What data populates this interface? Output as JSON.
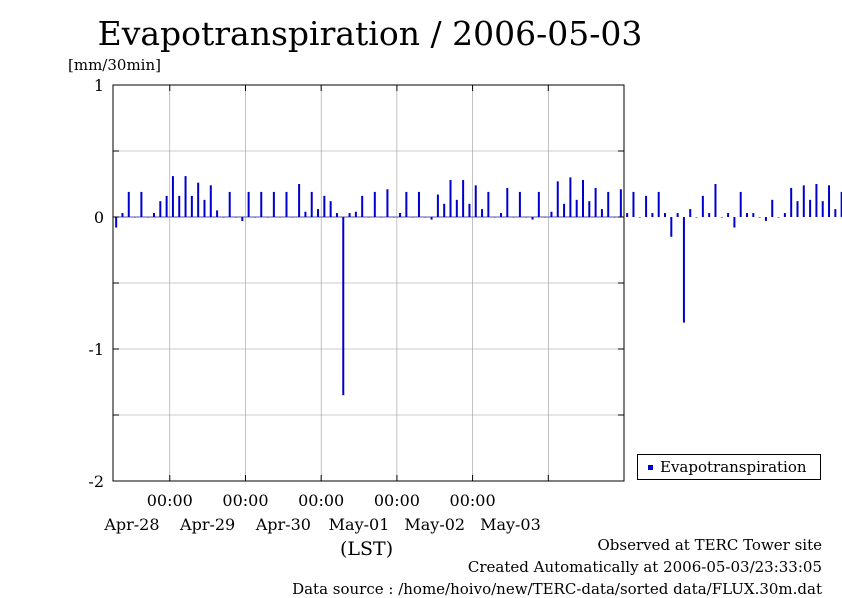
{
  "page": {
    "title": "Evapotranspiration / 2006-05-03",
    "unit_label": "[mm/30min]",
    "x_axis_title": "(LST)",
    "footer": {
      "line1": "Observed at TERC Tower site",
      "line2": "Created Automatically at 2006-05-03/23:33:05",
      "line3": "Data source : /home/hoivo/new/TERC-data/sorted  data/FLUX.30m.dat"
    }
  },
  "chart_data": {
    "type": "bar",
    "title": "Evapotranspiration / 2006-05-03",
    "ylabel": "[mm/30min]",
    "xlabel": "(LST)",
    "ylim": [
      -2,
      1
    ],
    "yticks": [
      1,
      0,
      -1,
      -2
    ],
    "xlim": [
      "2006-04-27 06:00",
      "2006-05-04 00:00"
    ],
    "xtick_times": [
      "00:00",
      "00:00",
      "00:00",
      "00:00",
      "00:00"
    ],
    "xtick_dates": [
      "Apr-28",
      "Apr-29",
      "Apr-30",
      "May-01",
      "May-02",
      "May-03"
    ],
    "legend": {
      "position": "right",
      "entries": [
        "Evapotranspiration"
      ]
    },
    "colors": {
      "series": "#0000cc",
      "grid": "#999999"
    },
    "grid": true,
    "series": [
      {
        "name": "Evapotranspiration",
        "hour_step": 2,
        "values": [
          -0.08,
          0.03,
          0.19,
          0.0,
          0.19,
          0.0,
          0.03,
          0.12,
          0.16,
          0.31,
          0.16,
          0.31,
          0.16,
          0.26,
          0.13,
          0.24,
          0.05,
          0.0,
          0.19,
          0.0,
          -0.03,
          0.19,
          0.0,
          0.19,
          0.0,
          0.19,
          0.0,
          0.19,
          0.0,
          0.25,
          0.04,
          0.19,
          0.06,
          0.16,
          0.12,
          0.03,
          -1.35,
          0.03,
          0.04,
          0.16,
          0.0,
          0.19,
          0.0,
          0.21,
          0.0,
          0.03,
          0.19,
          0.0,
          0.19,
          0.0,
          -0.02,
          0.17,
          0.1,
          0.28,
          0.13,
          0.28,
          0.1,
          0.24,
          0.06,
          0.19,
          0.0,
          0.03,
          0.22,
          0.0,
          0.19,
          0.0,
          -0.02,
          0.19,
          0.0,
          0.04,
          0.27,
          0.1,
          0.3,
          0.13,
          0.28,
          0.12,
          0.22,
          0.06,
          0.19,
          0.0,
          0.21,
          0.03,
          0.19,
          0.0,
          0.16,
          0.03,
          0.19,
          0.03,
          -0.15,
          0.03,
          -0.8,
          0.06,
          0.0,
          0.16,
          0.03,
          0.25,
          0.0,
          0.03,
          -0.08,
          0.19,
          0.03,
          0.03,
          0.0,
          -0.03,
          0.13,
          0.0,
          0.03,
          0.22,
          0.12,
          0.24,
          0.13,
          0.25,
          0.12,
          0.24,
          0.06,
          0.19,
          0.0,
          0.19
        ]
      }
    ]
  }
}
